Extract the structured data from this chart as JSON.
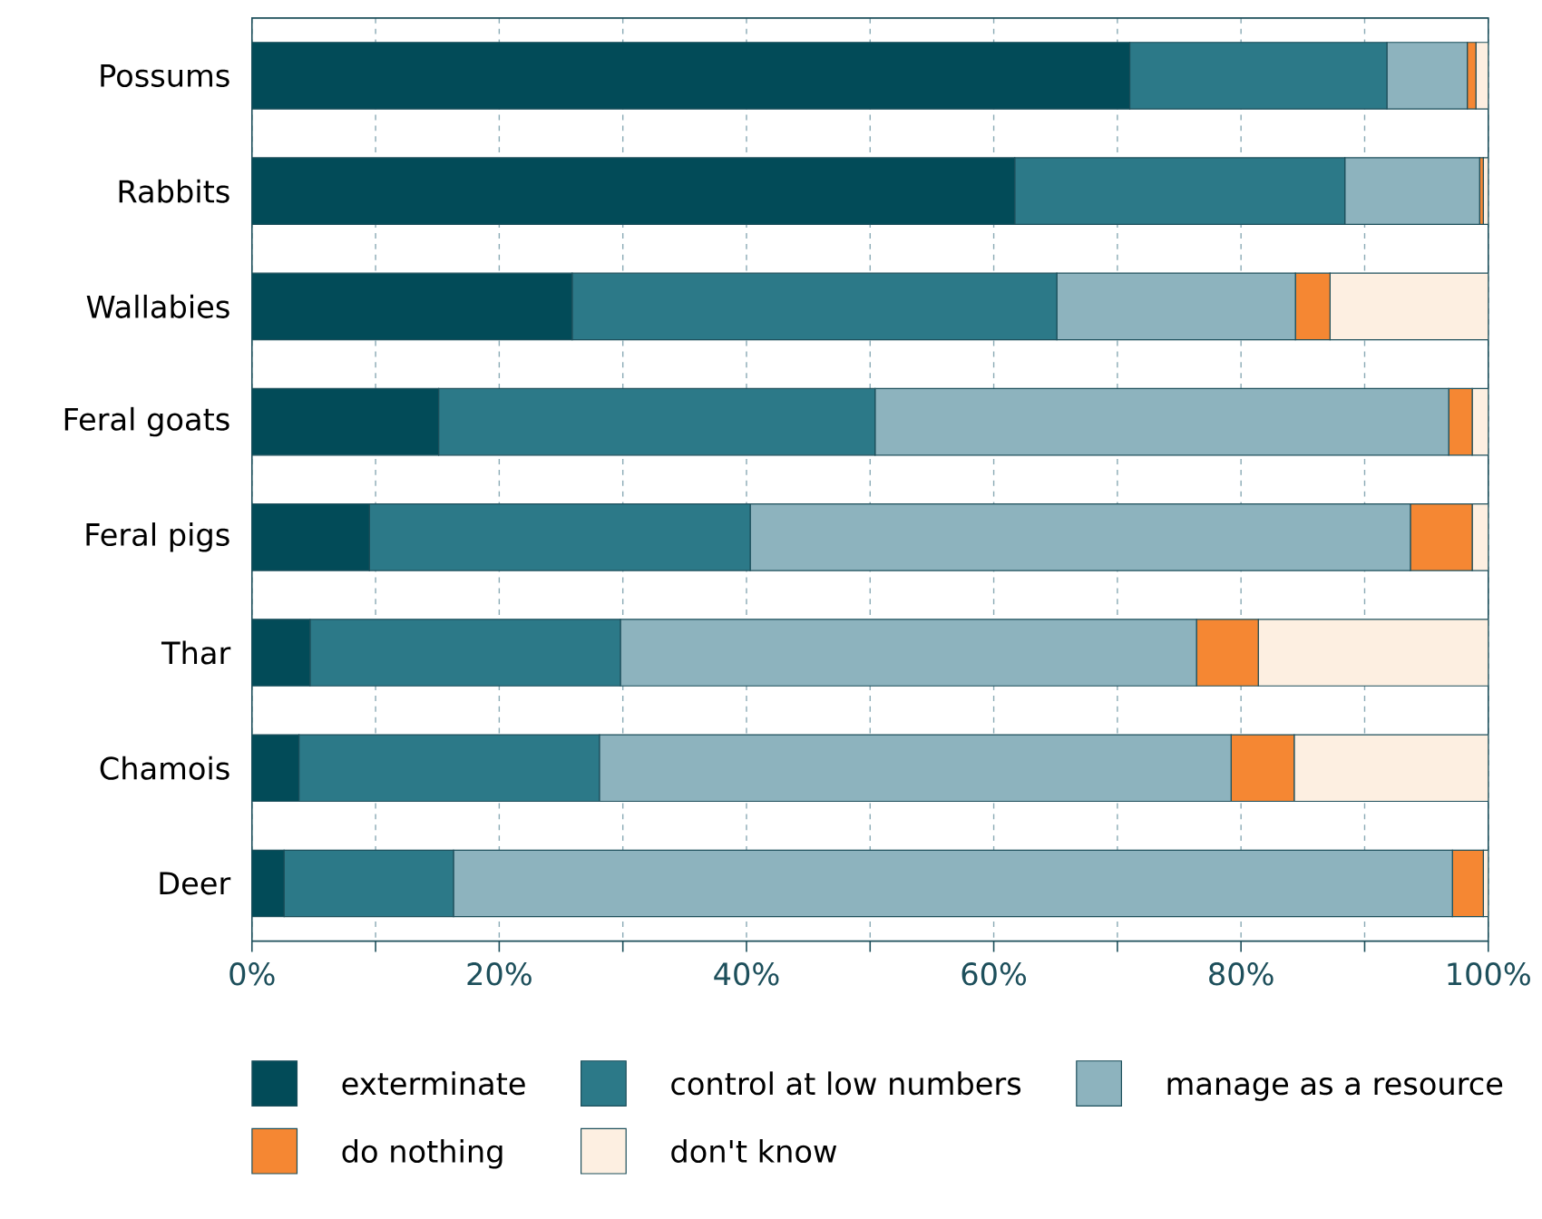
{
  "chart_data": {
    "type": "bar",
    "orientation": "horizontal",
    "stacked": true,
    "categories": [
      "Possums",
      "Rabbits",
      "Wallabies",
      "Feral goats",
      "Feral pigs",
      "Thar",
      "Chamois",
      "Deer"
    ],
    "series": [
      {
        "name": "exterminate",
        "color": "#024b58",
        "values": [
          71.0,
          61.7,
          25.9,
          15.1,
          9.5,
          4.7,
          3.8,
          2.6
        ]
      },
      {
        "name": "control at low numbers",
        "color": "#2c7988",
        "values": [
          20.8,
          26.7,
          39.2,
          35.3,
          30.8,
          25.1,
          24.3,
          13.7
        ]
      },
      {
        "name": "manage as a resource",
        "color": "#8db3be",
        "values": [
          6.5,
          10.9,
          19.3,
          46.4,
          53.4,
          46.6,
          51.1,
          80.8
        ]
      },
      {
        "name": "do nothing",
        "color": "#f58733",
        "values": [
          0.7,
          0.3,
          2.8,
          1.9,
          5.0,
          5.0,
          5.1,
          2.5
        ]
      },
      {
        "name": "don't know",
        "color": "#fdefe1",
        "values": [
          1.0,
          0.4,
          12.8,
          1.3,
          1.3,
          18.6,
          15.7,
          0.4
        ]
      }
    ],
    "xlim": [
      0,
      100
    ],
    "xticks": [
      {
        "value": 0,
        "label": "0%"
      },
      {
        "value": 10,
        "label": null
      },
      {
        "value": 20,
        "label": "20%"
      },
      {
        "value": 30,
        "label": null
      },
      {
        "value": 40,
        "label": "40%"
      },
      {
        "value": 50,
        "label": null
      },
      {
        "value": 60,
        "label": "60%"
      },
      {
        "value": 70,
        "label": null
      },
      {
        "value": 80,
        "label": "80%"
      },
      {
        "value": 90,
        "label": null
      },
      {
        "value": 100,
        "label": "100%"
      }
    ],
    "grid": "x",
    "legend": "bottom"
  }
}
